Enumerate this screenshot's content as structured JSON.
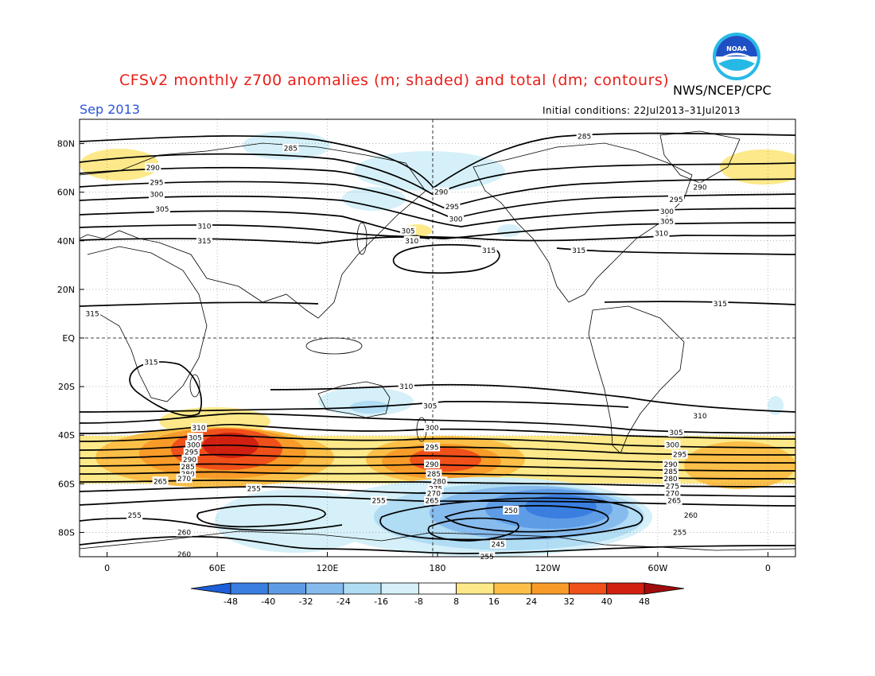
{
  "header": {
    "title": "CFSv2 monthly z700 anomalies (m; shaded) and total (dm; contours)",
    "agency": "NWS/NCEP/CPC",
    "period": "Sep 2013",
    "initial_conditions": "Initial conditions: 22Jul2013–31Jul2013"
  },
  "logo": {
    "icon": "noaa-logo-icon",
    "text": "NOAA",
    "colors": {
      "ring": "#27b9e6",
      "center": "#1f4fc4",
      "gull": "#ffffff"
    }
  },
  "map": {
    "lat_labels": [
      "80N",
      "60N",
      "40N",
      "20N",
      "EQ",
      "20S",
      "40S",
      "60S",
      "80S"
    ],
    "lon_labels": [
      "0",
      "60E",
      "120E",
      "180",
      "120W",
      "60W",
      "0"
    ],
    "lat_range": [
      90,
      -90
    ],
    "lon_range": [
      -15,
      375
    ],
    "dashed_reference_lines": [
      "EQ",
      "180"
    ],
    "contour_labels": [
      {
        "text": "285",
        "lon": 100,
        "lat": 78
      },
      {
        "text": "290",
        "lon": 25,
        "lat": 70
      },
      {
        "text": "295",
        "lon": 27,
        "lat": 64
      },
      {
        "text": "300",
        "lon": 27,
        "lat": 59
      },
      {
        "text": "305",
        "lon": 30,
        "lat": 53
      },
      {
        "text": "310",
        "lon": 53,
        "lat": 46
      },
      {
        "text": "315",
        "lon": 53,
        "lat": 40
      },
      {
        "text": "305",
        "lon": 164,
        "lat": 44
      },
      {
        "text": "310",
        "lon": 166,
        "lat": 40
      },
      {
        "text": "315",
        "lon": 208,
        "lat": 36
      },
      {
        "text": "290",
        "lon": 182,
        "lat": 60
      },
      {
        "text": "295",
        "lon": 188,
        "lat": 54
      },
      {
        "text": "300",
        "lon": 190,
        "lat": 49
      },
      {
        "text": "285",
        "lon": 260,
        "lat": 83
      },
      {
        "text": "290",
        "lon": 323,
        "lat": 62
      },
      {
        "text": "295",
        "lon": 310,
        "lat": 57
      },
      {
        "text": "300",
        "lon": 305,
        "lat": 52
      },
      {
        "text": "305",
        "lon": 305,
        "lat": 48
      },
      {
        "text": "310",
        "lon": 302,
        "lat": 43
      },
      {
        "text": "315",
        "lon": 257,
        "lat": 36
      },
      {
        "text": "315",
        "lon": 334,
        "lat": 14
      },
      {
        "text": "315",
        "lon": -8,
        "lat": 10
      },
      {
        "text": "315",
        "lon": 24,
        "lat": -10
      },
      {
        "text": "310",
        "lon": 163,
        "lat": -20
      },
      {
        "text": "305",
        "lon": 176,
        "lat": -28
      },
      {
        "text": "310",
        "lon": 323,
        "lat": -32
      },
      {
        "text": "310",
        "lon": 50,
        "lat": -37
      },
      {
        "text": "305",
        "lon": 48,
        "lat": -41
      },
      {
        "text": "300",
        "lon": 47,
        "lat": -44
      },
      {
        "text": "295",
        "lon": 46,
        "lat": -47
      },
      {
        "text": "290",
        "lon": 45,
        "lat": -50
      },
      {
        "text": "285",
        "lon": 44,
        "lat": -53
      },
      {
        "text": "280",
        "lon": 44,
        "lat": -56
      },
      {
        "text": "270",
        "lon": 42,
        "lat": -58
      },
      {
        "text": "265",
        "lon": 29,
        "lat": -59
      },
      {
        "text": "300",
        "lon": 177,
        "lat": -37
      },
      {
        "text": "295",
        "lon": 177,
        "lat": -45
      },
      {
        "text": "290",
        "lon": 177,
        "lat": -52
      },
      {
        "text": "285",
        "lon": 178,
        "lat": -56
      },
      {
        "text": "280",
        "lon": 181,
        "lat": -59
      },
      {
        "text": "275",
        "lon": 179,
        "lat": -62
      },
      {
        "text": "270",
        "lon": 178,
        "lat": -64
      },
      {
        "text": "265",
        "lon": 177,
        "lat": -67
      },
      {
        "text": "305",
        "lon": 310,
        "lat": -39
      },
      {
        "text": "300",
        "lon": 308,
        "lat": -44
      },
      {
        "text": "295",
        "lon": 312,
        "lat": -48
      },
      {
        "text": "290",
        "lon": 307,
        "lat": -52
      },
      {
        "text": "285",
        "lon": 307,
        "lat": -55
      },
      {
        "text": "280",
        "lon": 307,
        "lat": -58
      },
      {
        "text": "275",
        "lon": 308,
        "lat": -61
      },
      {
        "text": "270",
        "lon": 308,
        "lat": -64
      },
      {
        "text": "265",
        "lon": 309,
        "lat": -67
      },
      {
        "text": "260",
        "lon": 318,
        "lat": -73
      },
      {
        "text": "255",
        "lon": 312,
        "lat": -80
      },
      {
        "text": "255",
        "lon": 80,
        "lat": -62
      },
      {
        "text": "255",
        "lon": 148,
        "lat": -67
      },
      {
        "text": "255",
        "lon": 15,
        "lat": -73
      },
      {
        "text": "260",
        "lon": 42,
        "lat": -80
      },
      {
        "text": "260",
        "lon": 42,
        "lat": -89
      },
      {
        "text": "250",
        "lon": 220,
        "lat": -71
      },
      {
        "text": "245",
        "lon": 213,
        "lat": -85
      },
      {
        "text": "255",
        "lon": 207,
        "lat": -90
      }
    ]
  },
  "colorbar": {
    "labels": [
      "-48",
      "-40",
      "-32",
      "-24",
      "-16",
      "-8",
      "8",
      "16",
      "24",
      "32",
      "40",
      "48"
    ],
    "colors": [
      "#1e5fd8",
      "#3a7ee0",
      "#5e9ce6",
      "#86bbee",
      "#b0dcf4",
      "#d5f0f8",
      "#ffffff",
      "#fde98a",
      "#fcc048",
      "#f89b28",
      "#f0501a",
      "#d22010",
      "#a00c0c"
    ]
  }
}
